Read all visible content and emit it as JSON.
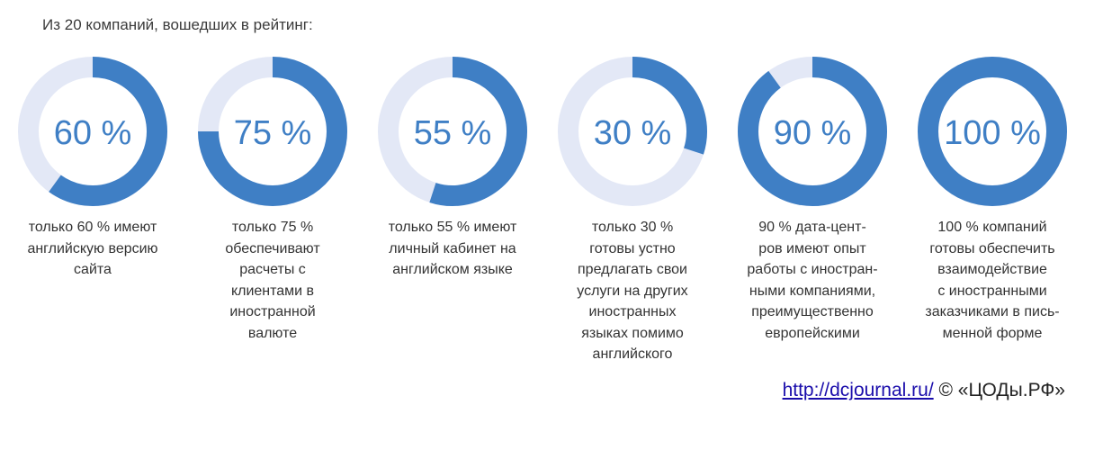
{
  "heading": "Из 20 компаний, вошедших в рейтинг:",
  "colors": {
    "filled": "#3f7fc5",
    "track": "#e3e8f6"
  },
  "chart_data": {
    "type": "pie",
    "variant": "donut",
    "series": [
      {
        "value": 60,
        "label": "60 %",
        "caption": [
          "только 60 % имеют",
          "английскую версию",
          "сайта"
        ]
      },
      {
        "value": 75,
        "label": "75 %",
        "caption": [
          "только 75 %",
          "обеспечивают",
          "расчеты с",
          "клиентами в",
          "иностранной",
          "валюте"
        ]
      },
      {
        "value": 55,
        "label": "55 %",
        "caption": [
          "только 55 % имеют",
          "личный кабинет на",
          "английском языке"
        ]
      },
      {
        "value": 30,
        "label": "30 %",
        "caption": [
          "только 30 %",
          "готовы устно",
          "предлагать свои",
          "услуги на других",
          "иностранных",
          "языках помимо",
          "английского"
        ]
      },
      {
        "value": 90,
        "label": "90 %",
        "caption": [
          "90 % дата-цент-",
          "ров имеют опыт",
          "работы с иностран-",
          "ными компаниями,",
          "преимущественно",
          "европейскими"
        ]
      },
      {
        "value": 100,
        "label": "100 %",
        "caption": [
          "100 % компаний",
          "готовы обеспечить",
          "взаимодействие",
          "с иностранными",
          "заказчиками в пись-",
          "менной форме"
        ]
      }
    ],
    "max": 100
  },
  "credit": {
    "link_text": "http://dcjournal.ru/",
    "suffix": " © «ЦОДы.РФ»"
  }
}
